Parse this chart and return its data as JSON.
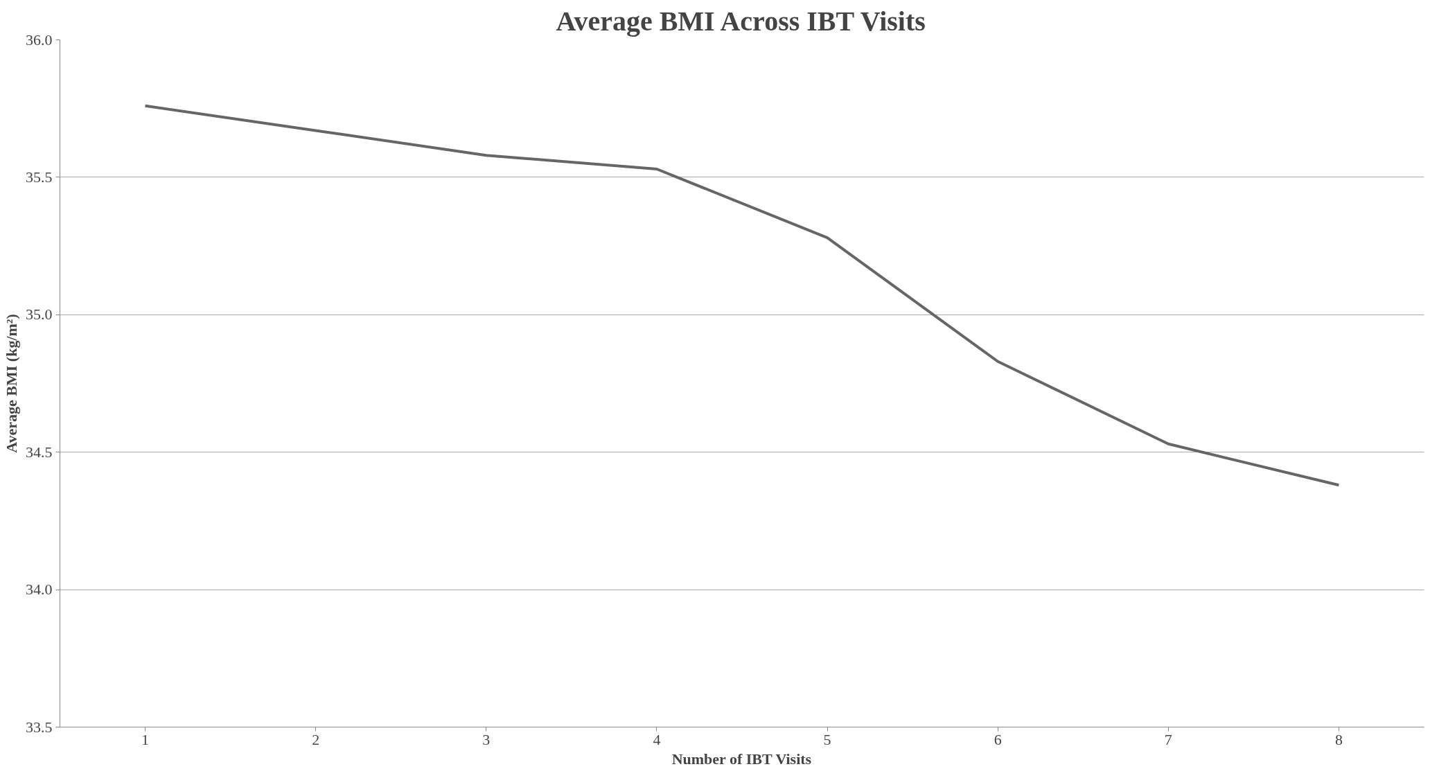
{
  "chart_data": {
    "type": "line",
    "title": "Average BMI Across IBT Visits",
    "xlabel": "Number of IBT Visits",
    "ylabel": "Average BMI (kg/m²)",
    "categories": [
      "1",
      "2",
      "3",
      "4",
      "5",
      "6",
      "7",
      "8"
    ],
    "series": [
      {
        "color": "#666666",
        "values": [
          35.76,
          35.67,
          35.58,
          35.53,
          35.28,
          34.83,
          34.53,
          34.38
        ]
      }
    ],
    "ylim": [
      33.5,
      36.0
    ],
    "yticks": [
      {
        "value": 33.5,
        "label": "33.5"
      },
      {
        "value": 34.0,
        "label": "34.0"
      },
      {
        "value": 34.5,
        "label": "34.5"
      },
      {
        "value": 35.0,
        "label": "35.0"
      },
      {
        "value": 35.5,
        "label": "35.5"
      },
      {
        "value": 36.0,
        "label": "36.0"
      }
    ],
    "grid": "y"
  }
}
